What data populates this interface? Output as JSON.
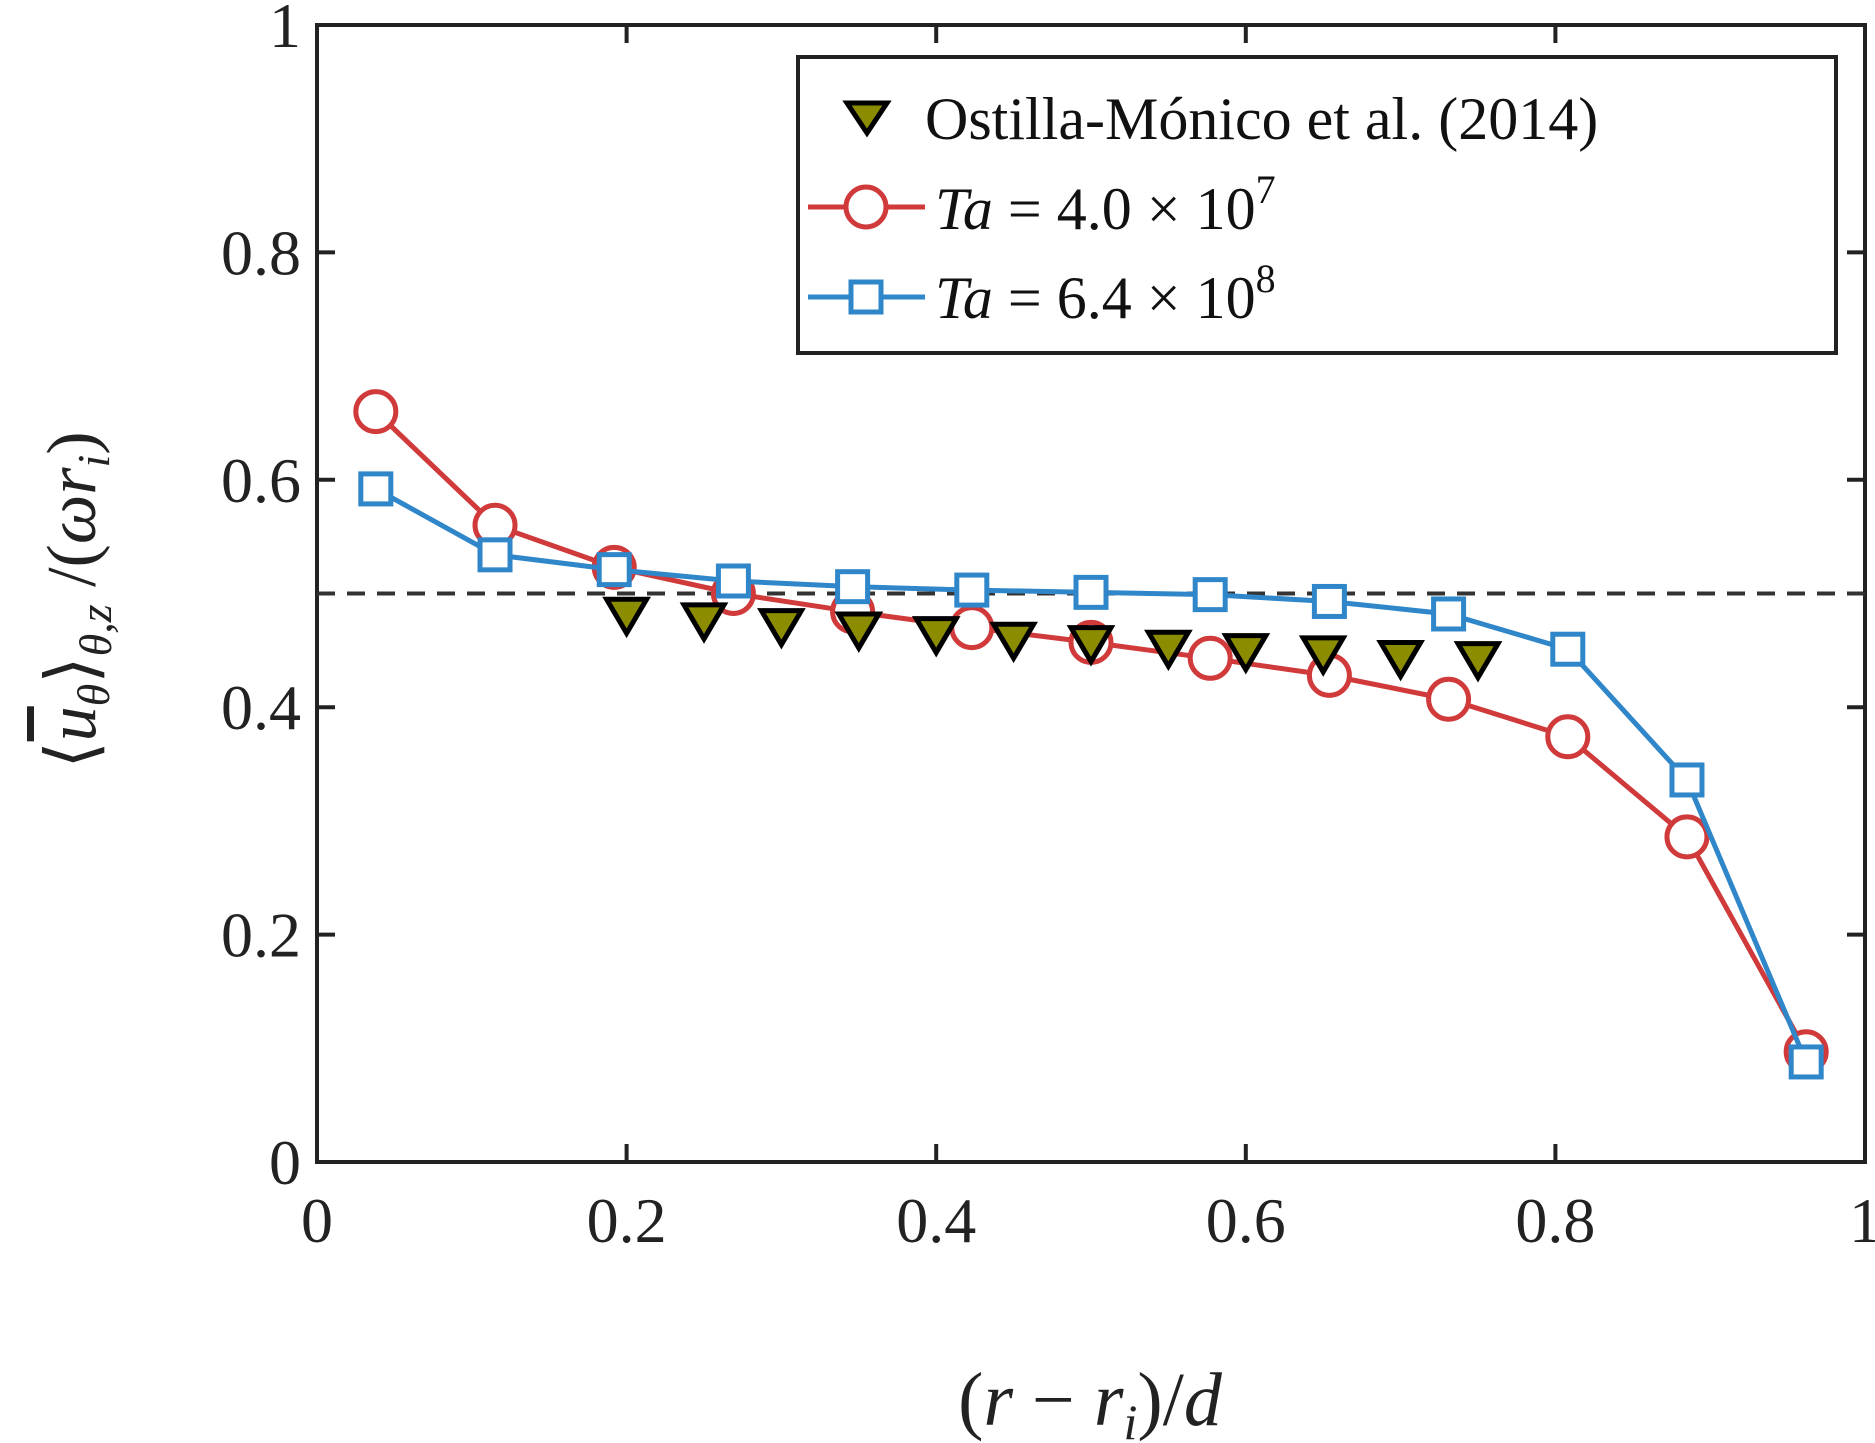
{
  "chart_data": {
    "type": "line",
    "xlabel": "(r − r_i)/d",
    "ylabel": "⟨u_θ⟩_{θ,z} /(ωr_i)",
    "xlim": [
      0,
      1
    ],
    "ylim": [
      0,
      1
    ],
    "x_ticks": [
      "0",
      "0.2",
      "0.4",
      "0.6",
      "0.8",
      "1"
    ],
    "y_ticks": [
      "0",
      "0.2",
      "0.4",
      "0.6",
      "0.8",
      "1"
    ],
    "grid": false,
    "legend_position": "top-right",
    "reference_line": {
      "y": 0.5,
      "style": "dashed"
    },
    "series": [
      {
        "name": "Ostilla-Mónico et al. (2014)",
        "marker": "triangle-down",
        "line": false,
        "color": "#000000",
        "fill": "#8c8c00",
        "x": [
          0.2,
          0.25,
          0.3,
          0.35,
          0.4,
          0.45,
          0.5,
          0.55,
          0.6,
          0.65,
          0.7,
          0.75
        ],
        "y": [
          0.48,
          0.475,
          0.47,
          0.467,
          0.463,
          0.458,
          0.455,
          0.451,
          0.448,
          0.446,
          0.442,
          0.441
        ]
      },
      {
        "name": "Ta = 4.0 × 10^7",
        "name_parts": {
          "var": "Ta",
          "eq": "=",
          "mant": "4.0",
          "times": "×",
          "base": "10",
          "exp": "7"
        },
        "marker": "circle",
        "line": true,
        "color": "#d03a3a",
        "x": [
          0.038,
          0.115,
          0.192,
          0.269,
          0.346,
          0.423,
          0.5,
          0.577,
          0.654,
          0.731,
          0.808,
          0.885,
          0.962
        ],
        "y": [
          0.66,
          0.56,
          0.523,
          0.5,
          0.484,
          0.47,
          0.457,
          0.443,
          0.428,
          0.407,
          0.374,
          0.286,
          0.097
        ]
      },
      {
        "name": "Ta = 6.4 × 10^8",
        "name_parts": {
          "var": "Ta",
          "eq": "=",
          "mant": "6.4",
          "times": "×",
          "base": "10",
          "exp": "8"
        },
        "marker": "square",
        "line": true,
        "color": "#2f86c9",
        "x": [
          0.038,
          0.115,
          0.192,
          0.269,
          0.346,
          0.423,
          0.5,
          0.577,
          0.654,
          0.731,
          0.808,
          0.885,
          0.962
        ],
        "y": [
          0.592,
          0.534,
          0.521,
          0.511,
          0.506,
          0.503,
          0.501,
          0.499,
          0.493,
          0.482,
          0.451,
          0.336,
          0.088
        ]
      }
    ]
  }
}
